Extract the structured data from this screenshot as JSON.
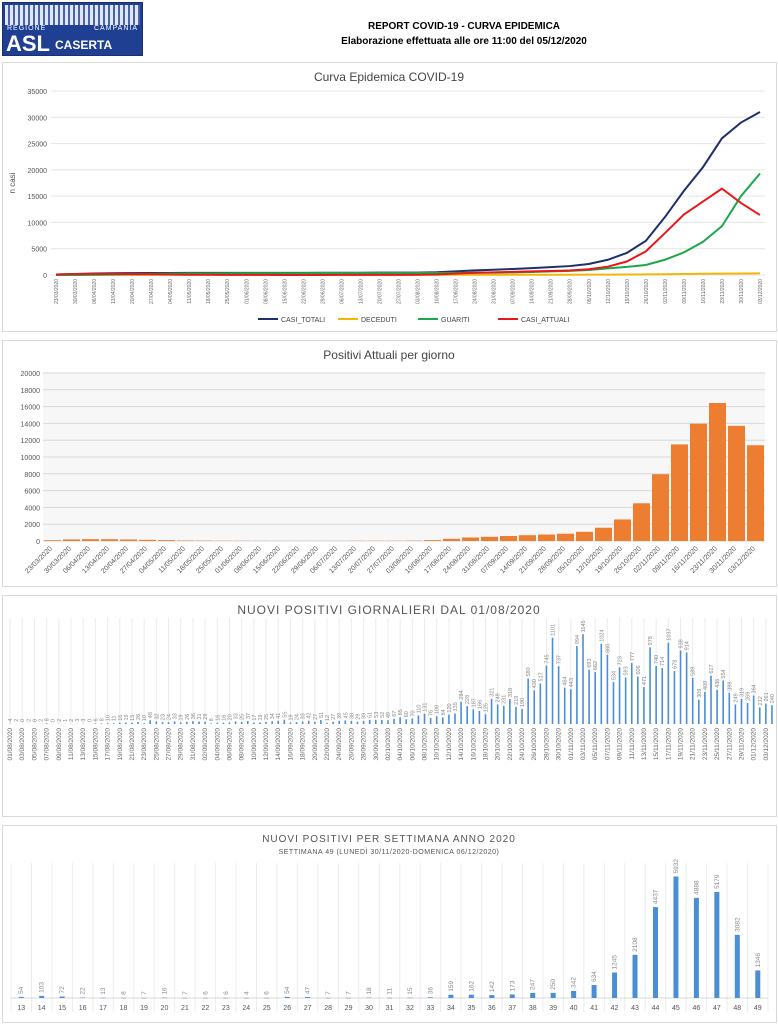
{
  "header": {
    "logo_region": "REGIONE",
    "logo_campania": "CAMPANIA",
    "logo_asl": "ASL",
    "logo_caserta": "CASERTA",
    "title": "REPORT COVID-19 - CURVA EPIDEMICA",
    "subtitle": "Elaborazione effettuata alle ore 11:00 del 05/12/2020"
  },
  "chart_data": [
    {
      "type": "line",
      "title": "Curva Epidemica COVID-19",
      "ylabel": "n casi",
      "xlabel": "",
      "ylim": [
        0,
        35000
      ],
      "yticks": [
        0,
        5000,
        10000,
        15000,
        20000,
        25000,
        30000,
        35000
      ],
      "grid": true,
      "legend": "bottom",
      "x": [
        "23/03/2020",
        "30/03/2020",
        "06/04/2020",
        "13/04/2020",
        "20/04/2020",
        "27/04/2020",
        "04/05/2020",
        "11/05/2020",
        "18/05/2020",
        "25/05/2020",
        "01/06/2020",
        "08/06/2020",
        "15/06/2020",
        "22/06/2020",
        "29/06/2020",
        "06/07/2020",
        "13/07/2020",
        "20/07/2020",
        "27/07/2020",
        "03/08/2020",
        "10/08/2020",
        "17/08/2020",
        "24/08/2020",
        "31/08/2020",
        "07/09/2020",
        "14/09/2020",
        "21/09/2020",
        "28/09/2020",
        "05/10/2020",
        "12/10/2020",
        "19/10/2020",
        "26/10/2020",
        "02/11/2020",
        "09/11/2020",
        "16/11/2020",
        "23/11/2020",
        "30/11/2020",
        "03/12/2020"
      ],
      "series": [
        {
          "name": "CASI_TOTALI",
          "color": "#1f2f6b",
          "values": [
            100,
            200,
            280,
            330,
            360,
            380,
            390,
            395,
            400,
            405,
            405,
            410,
            410,
            415,
            420,
            425,
            430,
            440,
            445,
            460,
            520,
            700,
            880,
            1000,
            1150,
            1300,
            1500,
            1700,
            2100,
            2900,
            4200,
            6500,
            11000,
            16000,
            20500,
            26000,
            29000,
            31000
          ]
        },
        {
          "name": "DECEDUTI",
          "color": "#f2b705",
          "values": [
            5,
            10,
            20,
            28,
            32,
            35,
            37,
            38,
            39,
            40,
            40,
            40,
            40,
            40,
            40,
            40,
            40,
            40,
            40,
            40,
            40,
            41,
            42,
            43,
            45,
            48,
            50,
            55,
            60,
            70,
            85,
            110,
            150,
            200,
            240,
            270,
            290,
            300
          ]
        },
        {
          "name": "GUARITI",
          "color": "#1aa84a",
          "values": [
            0,
            5,
            40,
            90,
            150,
            205,
            250,
            300,
            320,
            335,
            345,
            355,
            360,
            365,
            370,
            370,
            370,
            380,
            385,
            380,
            380,
            400,
            420,
            460,
            510,
            560,
            680,
            780,
            950,
            1250,
            1550,
            1900,
            2900,
            4300,
            6300,
            9300,
            15000,
            19300
          ]
        },
        {
          "name": "CASI_ATTUALI",
          "color": "#e8171c",
          "values": [
            95,
            185,
            220,
            212,
            178,
            140,
            103,
            57,
            41,
            30,
            20,
            15,
            10,
            10,
            10,
            15,
            20,
            20,
            20,
            40,
            100,
            259,
            418,
            497,
            595,
            692,
            770,
            865,
            1090,
            1580,
            2565,
            4490,
            7950,
            11500,
            13960,
            16430,
            13710,
            11400
          ]
        }
      ]
    },
    {
      "type": "bar",
      "title": "Positivi Attuali per giorno",
      "ylim": [
        0,
        20000
      ],
      "yticks": [
        0,
        2000,
        4000,
        6000,
        8000,
        10000,
        12000,
        14000,
        16000,
        18000,
        20000
      ],
      "grid": true,
      "color": "#ed7d31",
      "x_ref": "same as chart 1 weekly dates",
      "values_ref": "CASI_ATTUALI"
    },
    {
      "type": "bar",
      "title": "NUOVI POSITIVI GIORNALIERI DAL 01/08/2020",
      "start_date": "01/08/2020",
      "label_every_days": 2,
      "color": "#4a8fd6",
      "values": [
        4,
        2,
        0,
        2,
        0,
        2,
        8,
        0,
        2,
        1,
        2,
        3,
        3,
        0,
        6,
        8,
        10,
        11,
        16,
        19,
        15,
        26,
        10,
        48,
        32,
        23,
        24,
        33,
        19,
        26,
        36,
        31,
        29,
        8,
        16,
        16,
        20,
        33,
        25,
        37,
        17,
        19,
        25,
        34,
        41,
        55,
        19,
        24,
        33,
        42,
        27,
        51,
        12,
        27,
        39,
        45,
        38,
        29,
        39,
        51,
        53,
        52,
        49,
        67,
        85,
        60,
        70,
        110,
        131,
        76,
        100,
        84,
        120,
        135,
        284,
        228,
        187,
        166,
        125,
        321,
        249,
        231,
        318,
        219,
        190,
        580,
        430,
        517,
        745,
        1101,
        737,
        464,
        443,
        994,
        1145,
        693,
        662,
        1024,
        880,
        534,
        723,
        593,
        777,
        606,
        471,
        978,
        740,
        714,
        1037,
        678,
        938,
        914,
        589,
        309,
        409,
        617,
        436,
        554,
        398,
        249,
        319,
        269,
        364,
        212,
        261,
        240
      ]
    },
    {
      "type": "bar",
      "title": "NUOVI POSITIVI PER SETTIMANA ANNO 2020",
      "subtitle": "SETTIMANA 49 (LUNEDÌ 30/11/2020-DOMENICA 06/12/2020)",
      "color": "#4a8fd6",
      "categories": [
        "13",
        "14",
        "15",
        "16",
        "17",
        "18",
        "19",
        "20",
        "21",
        "22",
        "23",
        "24",
        "25",
        "26",
        "27",
        "28",
        "29",
        "30",
        "31",
        "32",
        "33",
        "34",
        "35",
        "36",
        "37",
        "38",
        "39",
        "40",
        "41",
        "42",
        "43",
        "44",
        "45",
        "46",
        "47",
        "48",
        "49"
      ],
      "values": [
        54,
        103,
        72,
        22,
        13,
        8,
        7,
        16,
        7,
        6,
        6,
        4,
        6,
        54,
        47,
        7,
        7,
        18,
        11,
        15,
        36,
        159,
        162,
        142,
        173,
        247,
        250,
        342,
        634,
        1245,
        2108,
        4437,
        5932,
        4888,
        5179,
        3082,
        1346
      ]
    }
  ]
}
